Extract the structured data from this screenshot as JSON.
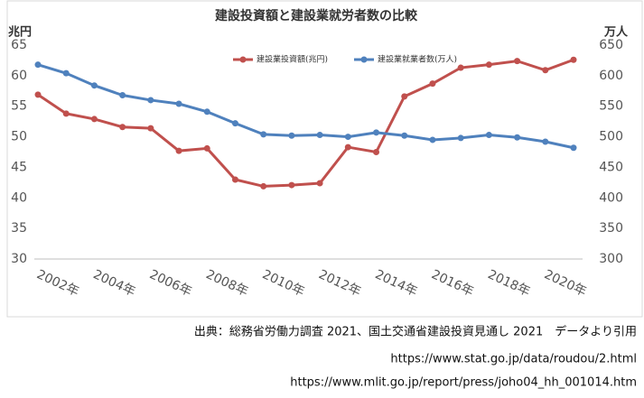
{
  "chart_data": {
    "type": "line",
    "title": "建設投資額と建設業就労者数の比較",
    "y_label": "兆円",
    "y2_label": "万人",
    "categories": [
      "2002年",
      null,
      "2004年",
      null,
      "2006年",
      null,
      "2008年",
      null,
      "2010年",
      null,
      "2012年",
      null,
      "2014年",
      null,
      "2016年",
      null,
      "2018年",
      null,
      "2020年",
      null
    ],
    "series": [
      {
        "name": "建設業投資額(兆円)",
        "color": "#c0504d",
        "axis": "y",
        "values": [
          56.9,
          53.8,
          52.9,
          51.6,
          51.4,
          47.7,
          48.1,
          43.0,
          41.9,
          42.1,
          42.4,
          48.3,
          47.5,
          56.6,
          58.7,
          61.3,
          61.8,
          62.4,
          60.9,
          62.6
        ]
      },
      {
        "name": "建設業就業者数(万人)",
        "color": "#4f81bd",
        "axis": "y2",
        "values": [
          618,
          604,
          584,
          568,
          560,
          554,
          541,
          522,
          504,
          502,
          503,
          500,
          507,
          502,
          495,
          498,
          503,
          499,
          492,
          482
        ]
      }
    ],
    "ylim": [
      30,
      65
    ],
    "yticks": [
      30,
      35,
      40,
      45,
      50,
      55,
      60,
      65
    ],
    "y2lim": [
      300,
      650
    ],
    "y2ticks": [
      300,
      350,
      400,
      450,
      500,
      550,
      600,
      650
    ],
    "grid": false,
    "legend": "top"
  },
  "footer": [
    "出典：総務省労働力調査 2021、国土交通省建設投資見通し 2021　データより引用",
    "https://www.stat.go.jp/data/roudou/2.html",
    "https://www.mlit.go.jp/report/press/joho04_hh_001014.htm"
  ]
}
